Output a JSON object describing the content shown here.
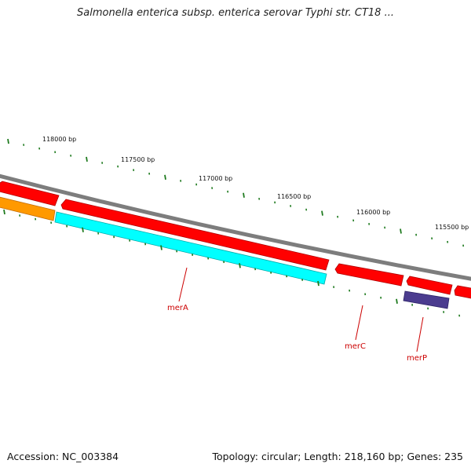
{
  "title": "Salmonella enterica subsp. enterica serovar Typhi str. CT18 ...",
  "footer": {
    "accession": "Accession: NC_003384",
    "summary": "Topology: circular; Length: 218,160 bp; Genes: 235"
  },
  "colors": {
    "backbone": "#7d7d7d",
    "tick": "#1e7a1e",
    "forward_gene": "#ff0000",
    "label": "#cc0000",
    "merA": "#00ffff",
    "orange_feature": "#ff9900",
    "merP": "#4b3c8f"
  },
  "bp_labels": [
    "118000 bp",
    "117500 bp",
    "117000 bp",
    "116500 bp",
    "116000 bp",
    "115500 bp"
  ],
  "genes": [
    {
      "name": "merA",
      "color": "#00ffff"
    },
    {
      "name": "merC",
      "color": "#ff0000"
    },
    {
      "name": "merP",
      "color": "#4b3c8f"
    }
  ]
}
